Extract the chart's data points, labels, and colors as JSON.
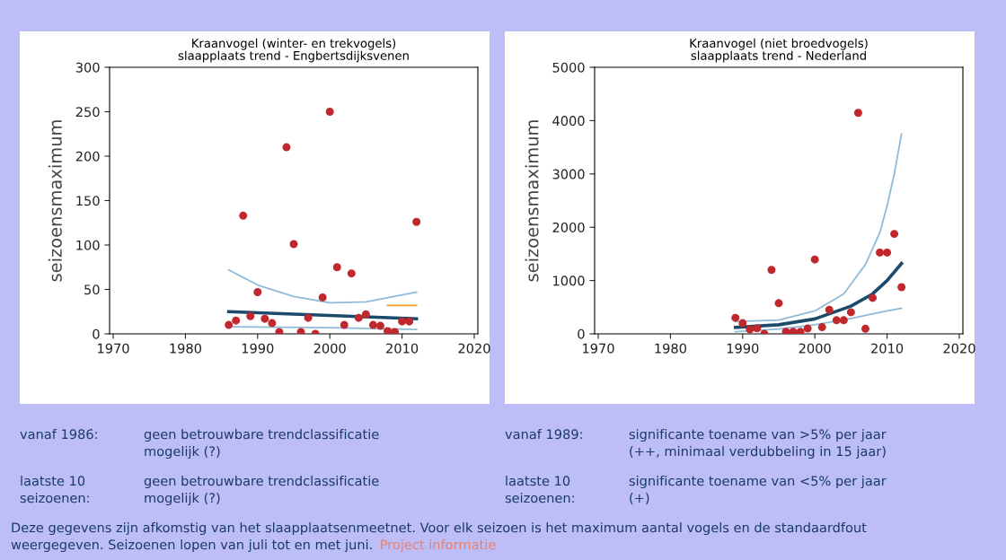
{
  "chart_data": [
    {
      "type": "scatter",
      "title": "Kraanvogel (winter- en trekvogels)",
      "subtitle": "slaapplaats trend - Engbertsdijksvenen",
      "ylabel": "seizoensmaximum",
      "xlim": [
        1969.5,
        2020.5
      ],
      "xticks": [
        1970,
        1980,
        1990,
        2000,
        2010,
        2020
      ],
      "ylim": [
        0,
        300
      ],
      "yticks": [
        0,
        50,
        100,
        150,
        200,
        250,
        300
      ],
      "grid": false,
      "legend": false,
      "series": [
        {
          "type": "line",
          "color": "#8fbbd9",
          "x": [
            1986,
            1990,
            1995,
            2000,
            2005,
            2012
          ],
          "values": [
            72,
            55,
            42,
            35,
            36,
            47
          ]
        },
        {
          "type": "line",
          "color": "#8fbbd9",
          "x": [
            1986,
            2000,
            2012
          ],
          "values": [
            8,
            7,
            5
          ]
        },
        {
          "type": "line",
          "color": "#1b4a6b",
          "x": [
            1986,
            2012
          ],
          "values": [
            25,
            17
          ]
        },
        {
          "type": "line",
          "color": "#f0a020",
          "x": [
            2008,
            2012
          ],
          "values": [
            32,
            32
          ]
        },
        {
          "marker": "circle",
          "color": "#c0282d",
          "x": [
            1986,
            1987,
            1988,
            1989,
            1990,
            1991,
            1992,
            1993,
            1994,
            1995,
            1996,
            1997,
            1998,
            1999,
            2000,
            2001,
            2002,
            2003,
            2004,
            2005,
            2006,
            2007,
            2008,
            2009,
            2010,
            2011,
            2012
          ],
          "values": [
            10,
            15,
            133,
            20,
            47,
            17,
            12,
            2,
            210,
            101,
            2,
            18,
            0,
            41,
            250,
            75,
            10,
            68,
            18,
            22,
            10,
            9,
            3,
            2,
            14,
            14,
            126
          ]
        }
      ],
      "annotations": [
        "vanaf 1986:",
        "geen betrouwbare trendclassificatie mogelijk (?)",
        "laatste 10 seizoenen:",
        "geen betrouwbare trendclassificatie mogelijk (?)",
        "Deze gegevens zijn afkomstig van het slaapplaatsenmeetnet. Voor elk seizoen is het maximum aantal vogels en de standaardfout weergegeven. Seizoenen lopen van juli tot en met juni.",
        "Project informatie"
      ]
    },
    {
      "type": "scatter",
      "title": "Kraanvogel (niet broedvogels)",
      "subtitle": "slaapplaats trend - Nederland",
      "ylabel": "seizoensmaximum",
      "xlim": [
        1969.5,
        2020.5
      ],
      "xticks": [
        1970,
        1980,
        1990,
        2000,
        2010,
        2020
      ],
      "ylim": [
        0,
        5000
      ],
      "yticks": [
        0,
        1000,
        2000,
        3000,
        4000,
        5000
      ],
      "grid": false,
      "legend": false,
      "series": [
        {
          "type": "line",
          "color": "#8fbbd9",
          "x": [
            1989,
            1995,
            2000,
            2004,
            2007,
            2009,
            2010,
            2011,
            2012
          ],
          "values": [
            230,
            260,
            430,
            750,
            1300,
            1900,
            2400,
            3000,
            3750
          ]
        },
        {
          "type": "line",
          "color": "#8fbbd9",
          "x": [
            1989,
            1995,
            2000,
            2005,
            2010,
            2012
          ],
          "values": [
            40,
            90,
            170,
            290,
            430,
            480
          ]
        },
        {
          "type": "line",
          "color": "#1b4a6b",
          "x": [
            1989,
            1995,
            2000,
            2005,
            2008,
            2010,
            2012
          ],
          "values": [
            120,
            170,
            280,
            520,
            750,
            1000,
            1320
          ]
        },
        {
          "marker": "circle",
          "color": "#c0282d",
          "x": [
            1989,
            1990,
            1991,
            1992,
            1993,
            1994,
            1995,
            1996,
            1997,
            1998,
            1999,
            2000,
            2001,
            2002,
            2003,
            2004,
            2005,
            2006,
            2007,
            2008,
            2009,
            2010,
            2011,
            2012
          ],
          "values": [
            300,
            200,
            85,
            105,
            0,
            1200,
            575,
            40,
            40,
            40,
            100,
            1395,
            125,
            450,
            255,
            255,
            405,
            4145,
            95,
            675,
            1525,
            1525,
            1875,
            875
          ]
        }
      ],
      "annotations": [
        "vanaf 1989:",
        "significante toename van >5% per jaar (++, minimaal verdubbeling in 15 jaar)",
        "laatste 10 seizoenen:",
        "significante toename van <5% per jaar (+)"
      ]
    }
  ]
}
